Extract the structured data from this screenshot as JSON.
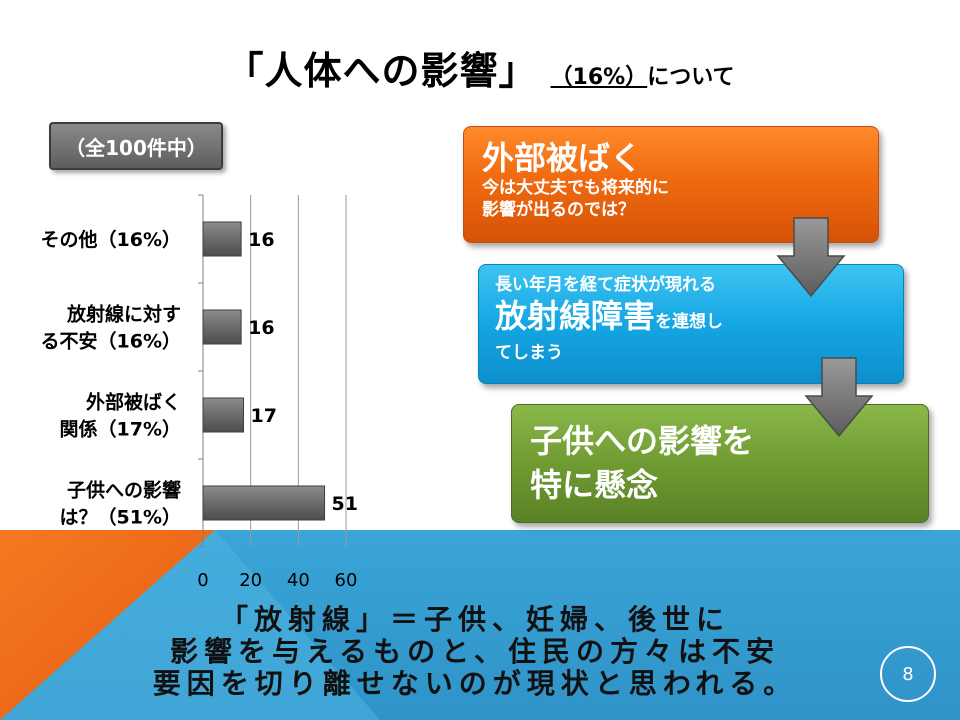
{
  "title": {
    "main": "「人体への影響」",
    "percent": "（16%）",
    "suffix": "について"
  },
  "badge": "（全100件中）",
  "chart_data": {
    "type": "bar",
    "orientation": "horizontal",
    "categories": [
      [
        "その他（16%）"
      ],
      [
        "放射線に対す",
        "る不安（16%）"
      ],
      [
        "外部被ばく",
        "関係（17%）"
      ],
      [
        "子供への影響",
        "は？（51%）"
      ]
    ],
    "values": [
      16,
      16,
      17,
      51
    ],
    "xlim": [
      0,
      60
    ],
    "xticks": [
      0,
      20,
      40,
      60
    ],
    "grid": true,
    "bar_color": "#6b6b6b"
  },
  "flow": {
    "box1": {
      "head": "外部被ばく",
      "sub1": "今は大丈夫でも将来的に",
      "sub2": "影響が出るのでは？",
      "color": "#f06a10"
    },
    "box2": {
      "line1": "長い年月を経て症状が現れる",
      "big": "放射線障害",
      "small": "を連想し",
      "line3": "てしまう",
      "color": "#14a6e3"
    },
    "box3": {
      "line1": "子供への影響を",
      "line2": "特に懸念",
      "color": "#6f9b32"
    }
  },
  "conclusion": {
    "line1": "「放射線」＝子供、妊婦、後世に",
    "line2": "影響を与えるものと、住民の方々は不安",
    "line3": "要因を切り離せないのが現状と思われる。"
  },
  "page_number": "8",
  "colors": {
    "band": "#3aa5d6",
    "triangle": "#f26a1b",
    "arrow": "#7a7a7a"
  }
}
